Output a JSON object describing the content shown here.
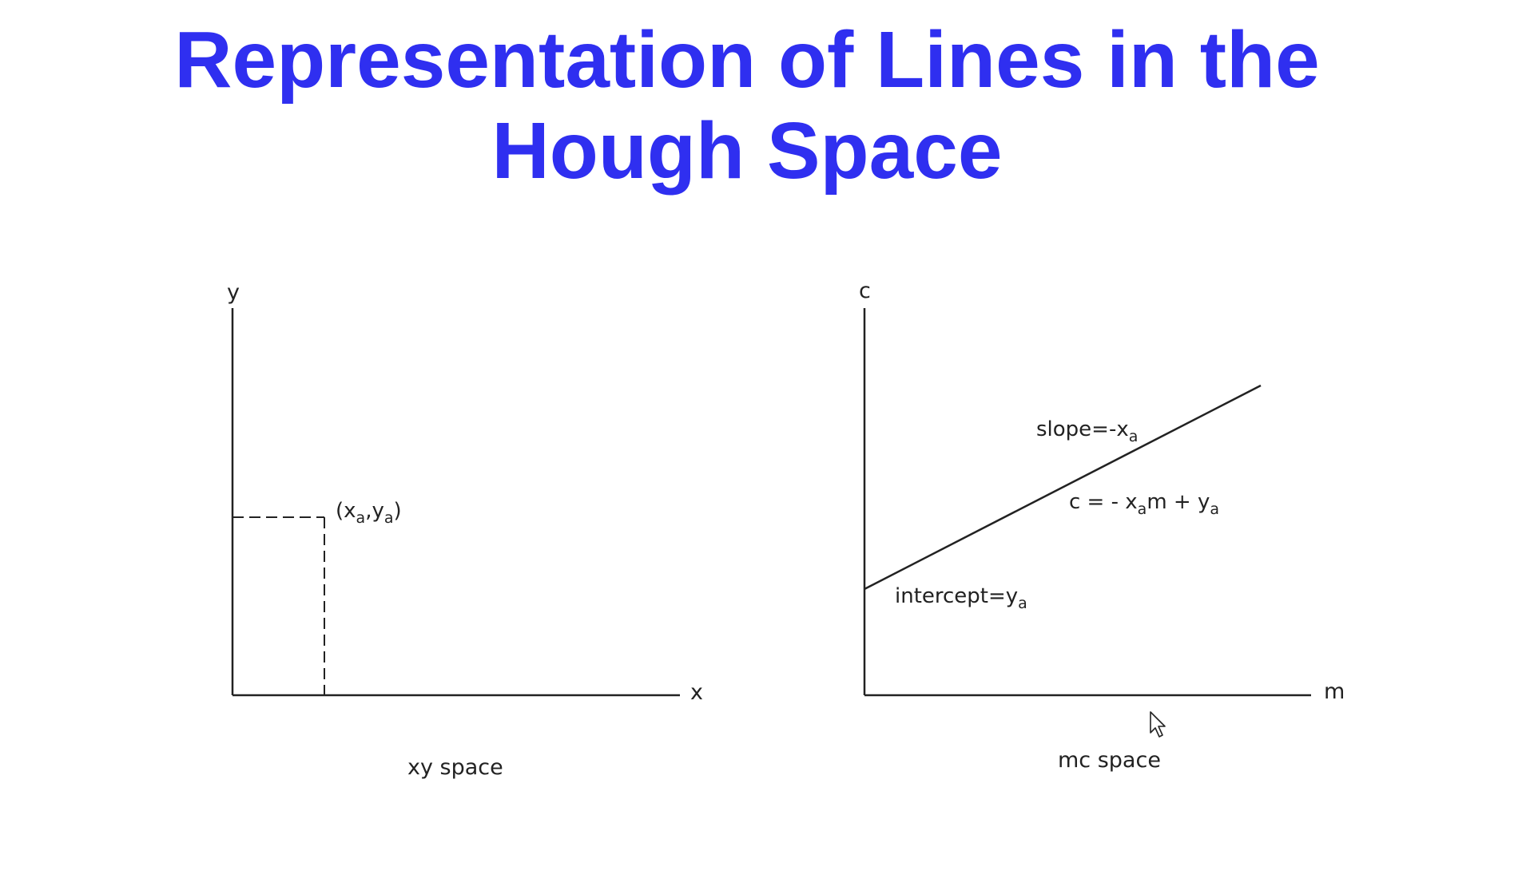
{
  "slide": {
    "title_line1": "Representation of Lines in the",
    "title_line2": "Hough Space",
    "title_color": "#2f2ff0",
    "line_color": "#222222"
  },
  "xy_panel": {
    "y_axis_label": "y",
    "x_axis_label": "x",
    "point_label": {
      "open": "(x",
      "sub1": "a",
      "comma": ",y",
      "sub2": "a",
      "close": ")"
    },
    "caption": "xy space"
  },
  "mc_panel": {
    "c_axis_label": "c",
    "m_axis_label": "m",
    "slope_label": {
      "text": "slope=-x",
      "sub": "a"
    },
    "equation_label": {
      "p1": "c = - x",
      "sub1": "a",
      "p2": "m + y",
      "sub2": "a"
    },
    "intercept_label": {
      "text": "intercept=y",
      "sub": "a"
    },
    "caption": "mc space"
  },
  "icons": {
    "cursor": "mouse-pointer-icon"
  }
}
